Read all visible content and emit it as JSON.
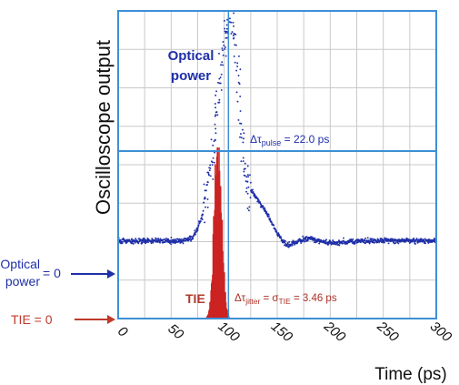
{
  "chart_data": {
    "type": "scatter",
    "title": "",
    "ylabel": "Oscilloscope output",
    "xlabel": "Time (ps)",
    "xlim": [
      0,
      300
    ],
    "ylim": [
      0,
      1
    ],
    "x_ticks": [
      0,
      50,
      100,
      150,
      200,
      250,
      300
    ],
    "grid": true,
    "y_baselines": [
      {
        "label_main": "Optical",
        "label_sub": "power",
        "label_eq": "= 0",
        "color": "#1f2fa8"
      },
      {
        "label_main": "TIE = 0",
        "color": "#c0392b"
      }
    ],
    "annotations": {
      "optical_power": [
        "Optical",
        "power"
      ],
      "pulse": {
        "prefix": "Δτ",
        "sub": "pulse",
        "suffix": " = 22.0 ps"
      },
      "tie_label": "TIE",
      "jitter": {
        "prefix": "Δτ",
        "sub": "jitter",
        "mid": " = σ",
        "sub2": "TIE",
        "suffix": " = 3.46 ps"
      }
    },
    "reference_line_x": 104,
    "series": [
      {
        "name": "Optical power",
        "color": "#1f2fa8",
        "x": [
          0,
          60,
          70,
          75,
          80,
          85,
          88,
          90,
          92,
          94,
          96,
          98,
          100,
          102,
          104,
          106,
          108,
          110,
          112,
          114,
          116,
          118,
          120,
          125,
          130,
          135,
          140,
          145,
          150,
          155,
          160,
          170,
          180,
          190,
          200,
          230,
          260,
          300
        ],
        "y": [
          0.13,
          0.13,
          0.14,
          0.18,
          0.24,
          0.34,
          0.44,
          0.52,
          0.6,
          0.68,
          0.76,
          0.84,
          0.9,
          0.95,
          0.99,
          1.01,
          0.98,
          0.92,
          0.82,
          0.7,
          0.57,
          0.46,
          0.37,
          0.33,
          0.3,
          0.27,
          0.24,
          0.2,
          0.16,
          0.13,
          0.11,
          0.13,
          0.14,
          0.13,
          0.12,
          0.13,
          0.13,
          0.13
        ]
      },
      {
        "name": "TIE",
        "color": "#cc2222",
        "type": "histogram",
        "mean": 93.5,
        "sigma": 3.46,
        "peak": 0.6
      }
    ]
  }
}
